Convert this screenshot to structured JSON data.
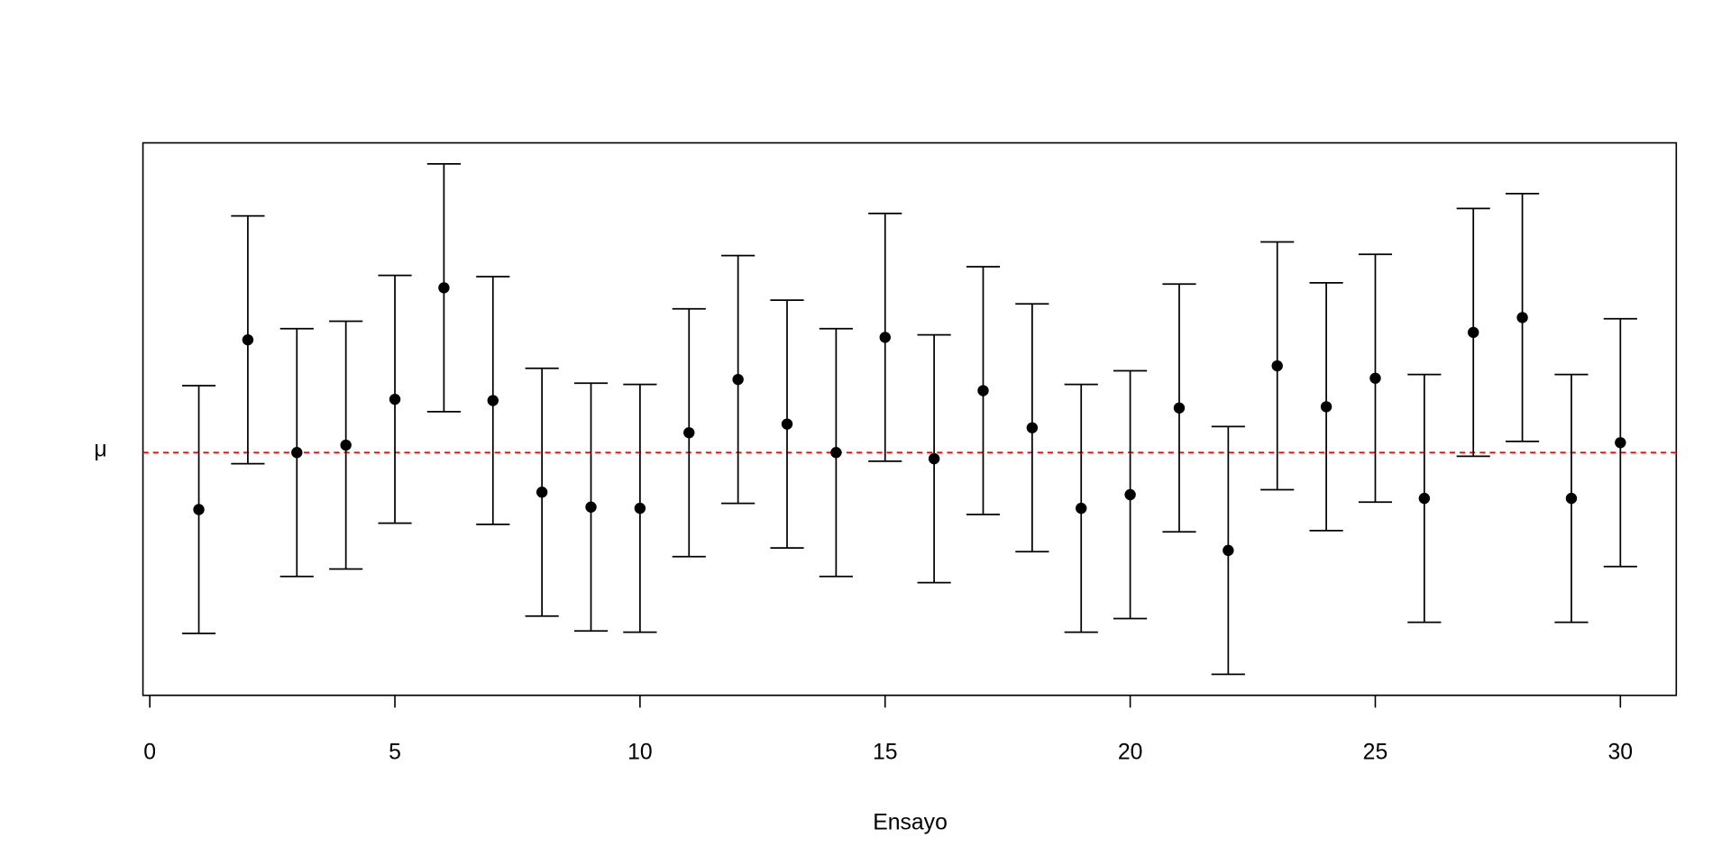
{
  "chart_data": {
    "type": "scatter",
    "title": "",
    "xlabel": "Ensayo",
    "ylabel": "",
    "reference_line": {
      "label": "μ",
      "value": 0,
      "color": "#ff0000",
      "style": "dashed"
    },
    "xlim": [
      -0.14,
      31.14
    ],
    "ylim": [
      -1.96,
      2.5
    ],
    "x_ticks": [
      0,
      5,
      10,
      15,
      20,
      25,
      30
    ],
    "x_tick_labels": [
      "0",
      "5",
      "10",
      "15",
      "20",
      "25",
      "30"
    ],
    "half_width": 1,
    "x": [
      1,
      2,
      3,
      4,
      5,
      6,
      7,
      8,
      9,
      10,
      11,
      12,
      13,
      14,
      15,
      16,
      17,
      18,
      19,
      20,
      21,
      22,
      23,
      24,
      25,
      26,
      27,
      28,
      29,
      30
    ],
    "means": [
      -0.46,
      0.91,
      0,
      0.06,
      0.43,
      1.33,
      0.42,
      -0.32,
      -0.44,
      -0.45,
      0.16,
      0.59,
      0.23,
      0,
      0.93,
      -0.05,
      0.5,
      0.2,
      -0.45,
      -0.34,
      0.36,
      -0.79,
      0.7,
      0.37,
      0.6,
      -0.37,
      0.97,
      1.09,
      -0.37,
      0.08
    ],
    "point_color": "#000000",
    "grid": false
  }
}
